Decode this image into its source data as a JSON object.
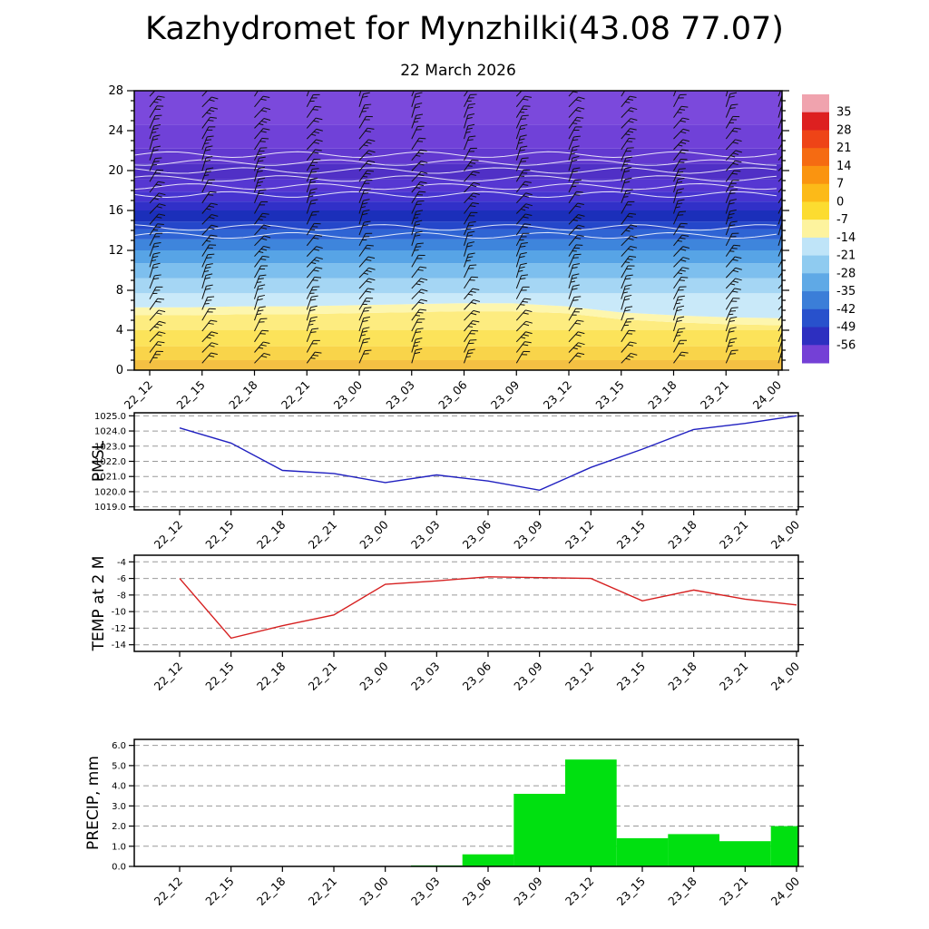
{
  "header": {
    "title": "Kazhydromet for Mynzhilki(43.08 77.07)",
    "subtitle": "22 March 2026"
  },
  "chart_data": [
    {
      "id": "cross-section",
      "type": "heatmap",
      "title": "22 March 2026",
      "ylabel": "",
      "ylim": [
        0,
        28
      ],
      "yticks": [
        0,
        4,
        8,
        12,
        16,
        20,
        24,
        28
      ],
      "categories": [
        "22_12",
        "22_15",
        "22_18",
        "22_21",
        "23_00",
        "23_03",
        "23_06",
        "23_09",
        "23_12",
        "23_15",
        "23_18",
        "23_21",
        "24_00"
      ],
      "colorbar_labels": [
        "35",
        "28",
        "21",
        "14",
        "7",
        "0",
        "-7",
        "-14",
        "-21",
        "-28",
        "-35",
        "-42",
        "-49",
        "-56"
      ],
      "colorbar_colors": [
        "#f0a3ae",
        "#dd2020",
        "#ee4417",
        "#f56b12",
        "#fa9410",
        "#fcba18",
        "#fcdc30",
        "#fdf39e",
        "#bfe4f8",
        "#8fcbf0",
        "#5fa9e6",
        "#3b7ed8",
        "#2851cc",
        "#2d2fc0",
        "#7440d6"
      ],
      "bands": [
        {
          "color": "#f4c043",
          "top": 1.0
        },
        {
          "color": "#f9d44a",
          "top": 2.4
        },
        {
          "color": "#fce35a",
          "top": 4.0
        },
        {
          "color": "#fdec80",
          "top": [
            5.5,
            5.5,
            5.6,
            5.6,
            5.7,
            5.8,
            5.9,
            5.9,
            5.7,
            5.1,
            4.8,
            4.6,
            4.5
          ]
        },
        {
          "color": "#fdf6ae",
          "top": [
            6.3,
            6.3,
            6.4,
            6.4,
            6.5,
            6.6,
            6.7,
            6.7,
            6.4,
            5.8,
            5.5,
            5.3,
            5.2
          ]
        },
        {
          "color": "#c9e9f9",
          "top": 7.7
        },
        {
          "color": "#a5d6f4",
          "top": 9.2
        },
        {
          "color": "#7dbfee",
          "top": 10.7
        },
        {
          "color": "#57a4e6",
          "top": 12.0
        },
        {
          "color": "#3e85dc",
          "top": 13.1
        },
        {
          "color": "#2f64d4",
          "top": 14.1
        },
        {
          "color": "#2547ca",
          "top": 14.9
        },
        {
          "color": "#1b2fba",
          "top": 16.0
        },
        {
          "color": "#3130c8",
          "top": 16.9
        },
        {
          "color": "#4634d0",
          "top": 17.9
        },
        {
          "color": "#5637d2",
          "top": 19.1
        },
        {
          "color": "#5030c6",
          "top": 20.7
        },
        {
          "color": "#6239d0",
          "top": 22.2
        },
        {
          "color": "#7041d8",
          "top": 24.6
        },
        {
          "color": "#7b49dc",
          "top": 28
        }
      ],
      "white_contour_heights": [
        13.5,
        14.3,
        17.6,
        18.4,
        19.2,
        20.0,
        20.8,
        21.6
      ],
      "wind_barbs": {
        "columns": 13,
        "rows": 26
      }
    },
    {
      "id": "pmsl",
      "type": "line",
      "ylabel": "PMSL",
      "color": "#2020c0",
      "ylim": [
        1018.8,
        1025.2
      ],
      "yticks": [
        1019,
        1020,
        1021,
        1022,
        1023,
        1024,
        1025
      ],
      "ytick_labels": [
        "1019.0",
        "1020.0",
        "1021.0",
        "1022.0",
        "1023.0",
        "1024.0",
        "1025.0"
      ],
      "categories": [
        "22_12",
        "22_15",
        "22_18",
        "22_21",
        "23_00",
        "23_03",
        "23_06",
        "23_09",
        "23_12",
        "23_15",
        "23_18",
        "23_21",
        "24_00"
      ],
      "values": [
        1024.2,
        1023.2,
        1021.4,
        1021.2,
        1020.6,
        1021.1,
        1020.7,
        1020.1,
        1021.6,
        1022.8,
        1024.1,
        1024.5,
        1025.0
      ]
    },
    {
      "id": "temp2m",
      "type": "line",
      "ylabel": "TEMP at 2 M",
      "color": "#d62020",
      "ylim": [
        -14.8,
        -3.2
      ],
      "yticks": [
        -14,
        -12,
        -10,
        -8,
        -6,
        -4
      ],
      "ytick_labels": [
        "-14",
        "-12",
        "-10",
        "-8",
        "-6",
        "-4"
      ],
      "categories": [
        "22_12",
        "22_15",
        "22_18",
        "22_21",
        "23_00",
        "23_03",
        "23_06",
        "23_09",
        "23_12",
        "23_15",
        "23_18",
        "23_21",
        "24_00"
      ],
      "values": [
        -6.0,
        -13.2,
        -11.7,
        -10.4,
        -6.7,
        -6.3,
        -5.8,
        -5.9,
        -6.0,
        -8.7,
        -7.4,
        -8.5,
        -9.2
      ]
    },
    {
      "id": "precip",
      "type": "bar",
      "ylabel": "PRECIP, mm",
      "color": "#00e010",
      "ylim": [
        0,
        6.3
      ],
      "yticks": [
        0,
        1,
        2,
        3,
        4,
        5,
        6
      ],
      "ytick_labels": [
        "0.0",
        "1.0",
        "2.0",
        "3.0",
        "4.0",
        "5.0",
        "6.0"
      ],
      "categories": [
        "22_12",
        "22_15",
        "22_18",
        "22_21",
        "23_00",
        "23_03",
        "23_06",
        "23_09",
        "23_12",
        "23_15",
        "23_18",
        "23_21",
        "24_00"
      ],
      "values": [
        0,
        0,
        0,
        0,
        0,
        0.05,
        0.6,
        3.6,
        5.3,
        1.4,
        1.6,
        1.25,
        2.0
      ]
    }
  ]
}
